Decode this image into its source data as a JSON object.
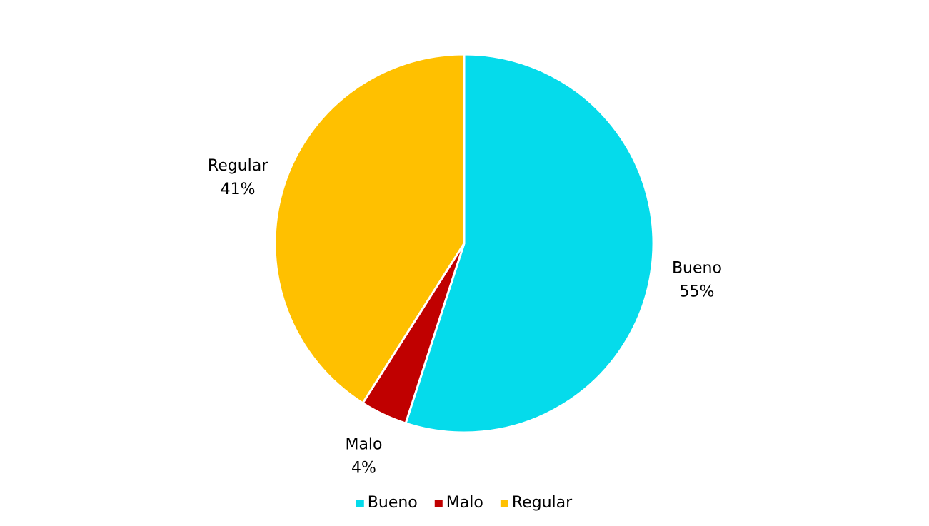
{
  "chart_data": {
    "type": "pie",
    "categories": [
      "Bueno",
      "Malo",
      "Regular"
    ],
    "values": [
      55,
      4,
      41
    ],
    "value_labels": [
      "55%",
      "4%",
      "41%"
    ],
    "colors": [
      "#05dbeb",
      "#c00000",
      "#ffc000"
    ],
    "legend": "bottom"
  }
}
